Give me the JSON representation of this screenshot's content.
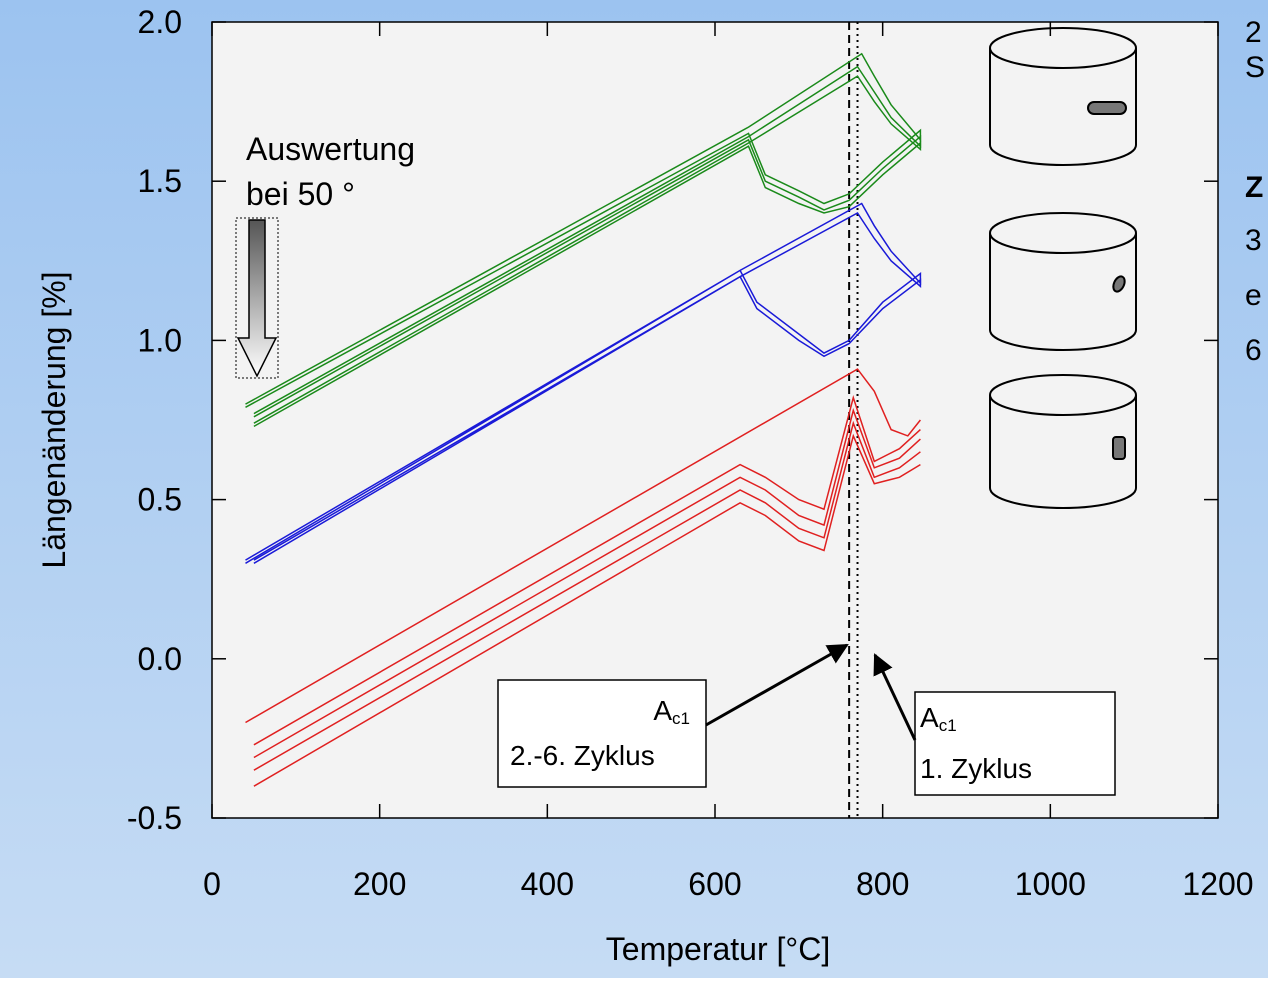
{
  "chart_data": {
    "type": "line",
    "y_label": "Längenänderung [%]",
    "x_label": "Temperatur [°C]",
    "xlim": [
      0,
      1200
    ],
    "ylim": [
      -0.5,
      2.0
    ],
    "xticks": [
      0,
      200,
      400,
      600,
      800,
      1000,
      1200
    ],
    "yticks": [
      -0.5,
      {
        "value": 0.0,
        "label": "0.0"
      },
      0.5,
      {
        "value": 1.0,
        "label": "1.0"
      },
      1.5,
      {
        "value": 2.0,
        "label": "2.0"
      }
    ],
    "series": [
      {
        "color": "#1a8a1a",
        "x": [
          40,
          640,
          660,
          700,
          730,
          760,
          800,
          845,
          845,
          810,
          790,
          775,
          640,
          40
        ],
        "values": [
          0.79,
          1.65,
          1.52,
          1.47,
          1.43,
          1.46,
          1.56,
          1.66,
          1.63,
          1.74,
          1.83,
          1.9,
          1.67,
          0.8
        ]
      },
      {
        "color": "#1a8a1a",
        "x": [
          50,
          640,
          660,
          700,
          730,
          760,
          800,
          845,
          845,
          810,
          790,
          770,
          640,
          50
        ],
        "values": [
          0.76,
          1.63,
          1.5,
          1.45,
          1.41,
          1.44,
          1.54,
          1.64,
          1.61,
          1.7,
          1.78,
          1.86,
          1.64,
          0.77
        ]
      },
      {
        "color": "#1a8a1a",
        "x": [
          50,
          640,
          660,
          700,
          730,
          760,
          800,
          845,
          845,
          810,
          790,
          770,
          640,
          50
        ],
        "values": [
          0.73,
          1.61,
          1.48,
          1.43,
          1.4,
          1.42,
          1.52,
          1.62,
          1.6,
          1.68,
          1.75,
          1.83,
          1.62,
          0.74
        ]
      },
      {
        "color": "#1a1ad8",
        "x": [
          40,
          630,
          650,
          700,
          730,
          760,
          800,
          845,
          845,
          810,
          790,
          775,
          630,
          40
        ],
        "values": [
          0.3,
          1.22,
          1.12,
          1.02,
          0.96,
          1.0,
          1.12,
          1.21,
          1.18,
          1.28,
          1.36,
          1.43,
          1.22,
          0.31
        ]
      },
      {
        "color": "#1a1ad8",
        "x": [
          50,
          630,
          650,
          700,
          730,
          760,
          800,
          845,
          845,
          810,
          790,
          770,
          630,
          50
        ],
        "values": [
          0.3,
          1.2,
          1.1,
          1.0,
          0.95,
          0.99,
          1.1,
          1.19,
          1.17,
          1.25,
          1.32,
          1.4,
          1.2,
          0.31
        ]
      },
      {
        "color": "#e02020",
        "x": [
          40,
          770,
          790,
          810,
          830,
          845
        ],
        "values": [
          -0.2,
          0.91,
          0.84,
          0.72,
          0.7,
          0.75
        ]
      },
      {
        "color": "#e02020",
        "x": [
          50,
          630,
          660,
          700,
          730,
          765,
          790,
          820,
          845
        ],
        "values": [
          -0.27,
          0.61,
          0.57,
          0.5,
          0.47,
          0.82,
          0.62,
          0.66,
          0.72
        ]
      },
      {
        "color": "#e02020",
        "x": [
          50,
          630,
          660,
          700,
          730,
          765,
          790,
          820,
          845
        ],
        "values": [
          -0.31,
          0.57,
          0.53,
          0.45,
          0.42,
          0.78,
          0.6,
          0.63,
          0.69
        ]
      },
      {
        "color": "#e02020",
        "x": [
          50,
          630,
          660,
          700,
          730,
          765,
          790,
          820,
          845
        ],
        "values": [
          -0.35,
          0.53,
          0.49,
          0.41,
          0.38,
          0.74,
          0.57,
          0.6,
          0.65
        ]
      },
      {
        "color": "#e02020",
        "x": [
          50,
          630,
          660,
          700,
          730,
          765,
          790,
          820,
          845
        ],
        "values": [
          -0.4,
          0.49,
          0.45,
          0.37,
          0.34,
          0.7,
          0.55,
          0.57,
          0.61
        ]
      }
    ],
    "vlines": [
      {
        "x": 760,
        "style": "dashed"
      },
      {
        "x": 770,
        "style": "dotted"
      }
    ],
    "annotations": [
      {
        "text": "A",
        "sub": "c1",
        "line2": "2.-6.  Zyklus"
      },
      {
        "text": "A",
        "sub": "c1",
        "line2": "1. Zyklus"
      },
      {
        "text": "Auswertung",
        "line2": "bei 50 °"
      }
    ],
    "side_text": [
      "2",
      "S",
      "Z",
      "3",
      "e",
      "6"
    ]
  }
}
